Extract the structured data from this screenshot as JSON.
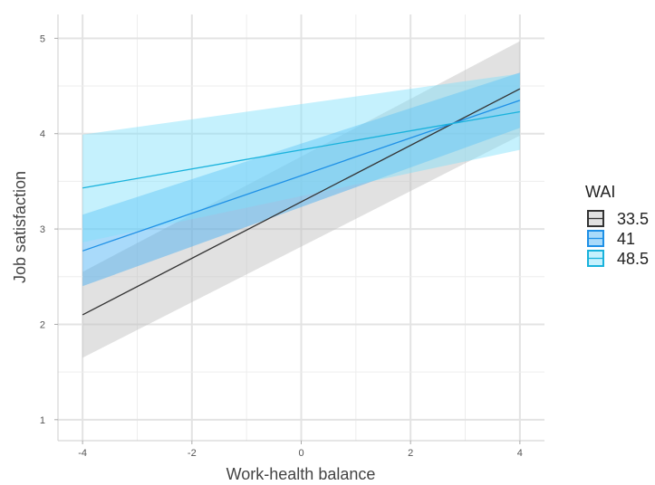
{
  "chart_data": {
    "type": "line",
    "xlabel": "Work-health balance",
    "ylabel": "Job satisfaction",
    "xlim": [
      -4.45,
      4.45
    ],
    "ylim": [
      0.78,
      5.25
    ],
    "x_ticks": [
      -4,
      -2,
      0,
      2,
      4
    ],
    "x_tick_labels": [
      "-4",
      "-2",
      "0",
      "2",
      "4"
    ],
    "y_ticks": [
      1,
      2,
      3,
      4,
      5
    ],
    "y_tick_labels": [
      "1",
      "2",
      "3",
      "4",
      "5"
    ],
    "grid": true,
    "legend": {
      "title": "WAI",
      "placement": "right"
    },
    "series": [
      {
        "name": "33.5",
        "color": "#333333",
        "band_color": "#bdbdbd",
        "x": [
          -4,
          4
        ],
        "y": [
          2.1,
          4.47
        ],
        "ci_lower": [
          1.65,
          3.98
        ],
        "ci_upper": [
          2.55,
          4.97
        ]
      },
      {
        "name": "41",
        "color": "#1e90e6",
        "band_color": "#41aef5",
        "x": [
          -4,
          4
        ],
        "y": [
          2.77,
          4.35
        ],
        "ci_lower": [
          2.4,
          4.06
        ],
        "ci_upper": [
          3.15,
          4.64
        ]
      },
      {
        "name": "48.5",
        "color": "#19b2dc",
        "band_color": "#7fe1fb",
        "x": [
          -4,
          4
        ],
        "y": [
          3.43,
          4.23
        ],
        "ci_lower": [
          2.86,
          3.83
        ],
        "ci_upper": [
          3.99,
          4.63
        ]
      }
    ]
  }
}
